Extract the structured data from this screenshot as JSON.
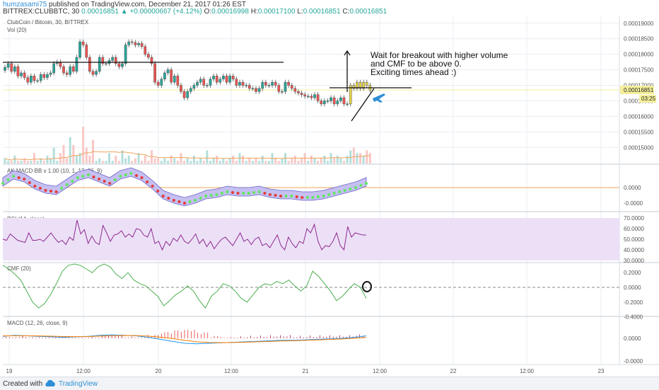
{
  "header": {
    "author": "humzasami75",
    "published": "published on TradingView.com, December 21, 2017 01:26 EST",
    "symbol_line": "BITTREX:CLUBBTC, 30",
    "last": "0.00016851",
    "change": "▲ +0.00000667 (+4.12%)",
    "o_label": "O:",
    "o_value": "0.00016998",
    "h_label": "H:",
    "h_value": "0.00017100",
    "l_label": "L:",
    "l_value": "0.00016851",
    "c_label": "C:",
    "c_value": "0.00016851"
  },
  "footer": {
    "created": "Created with",
    "brand": "TradingView"
  },
  "colors": {
    "up": "#26a69a",
    "down": "#ef5350",
    "yellow": "#e8d547",
    "grid": "#e9edf2",
    "axis": "#d6dce3"
  },
  "chart_data": [
    {
      "type": "candlestick",
      "title": "ClubCoin / Bitcoin, 30, BITTREX",
      "overlay_labels": [
        "Vol (20)"
      ],
      "y_ticks": [
        "0.00019000",
        "0.00018500",
        "0.00018000",
        "0.00017500",
        "0.00017000",
        "0.00016500",
        "0.00016000",
        "0.00015500",
        "0.00015000"
      ],
      "ylim": [
        0.0001487,
        0.0001904
      ],
      "price_tag": "0.00016851",
      "timer_tag": "03:25",
      "x_ticks": [
        "19",
        "12:00",
        "20",
        "12:00",
        "21",
        "12:00",
        "22",
        "12:00",
        "23"
      ],
      "series": [
        {
          "name": "close",
          "values": [
            0.0001758,
            0.000177,
            0.0001745,
            0.000176,
            0.000173,
            0.000174,
            0.0001725,
            0.000171,
            0.000173,
            0.0001715,
            0.0001715,
            0.0001735,
            0.0001725,
            0.0001735,
            0.000174,
            0.000177,
            0.0001775,
            0.000176,
            0.000174,
            0.0001735,
            0.000176,
            0.0001745,
            0.000179,
            0.000184,
            0.000183,
            0.000179,
            0.0001745,
            0.0001735,
            0.0001745,
            0.000179,
            0.000177,
            0.000177,
            0.000178,
            0.000179,
            0.000177,
            0.000176,
            0.000177,
            0.000183,
            0.000184,
            0.0001838,
            0.000183,
            0.0001835,
            0.0001825,
            0.00018,
            0.000179,
            0.000177,
            0.000171,
            0.00017,
            0.000172,
            0.000174,
            0.000175,
            0.000171,
            0.000173,
            0.00017,
            0.000168,
            0.000166,
            0.000168,
            0.000169,
            0.00017,
            0.000171,
            0.000172,
            0.00017,
            0.00017,
            0.000172,
            0.000173,
            0.000171,
            0.000172,
            0.000173,
            0.000171,
            0.000173,
            0.000172,
            0.00017,
            0.000171,
            0.00017,
            0.00017,
            0.000169,
            0.000169,
            0.000168,
            0.000169,
            0.000171,
            0.00017,
            0.00017,
            0.000171,
            0.00017,
            0.000168,
            0.000168,
            0.000171,
            0.00017,
            0.000169,
            0.000168,
            0.0001675,
            0.000167,
            0.0001665,
            0.0001665,
            0.000166,
            0.000167,
            0.000165,
            0.000164,
            0.000165,
            0.000165,
            0.000166,
            0.000164,
            0.000165,
            0.000166,
            0.000164,
            0.000164,
            0.00017,
            0.000169,
            0.000171,
            0.000169,
            0.000171,
            0.00017,
            0.0001685
          ]
        },
        {
          "name": "volume",
          "values": [
            2,
            1,
            1,
            3,
            1,
            1,
            2,
            1,
            1,
            4,
            1,
            2,
            1,
            3,
            2,
            6,
            1,
            4,
            7,
            2,
            10,
            7,
            3,
            4,
            14,
            6,
            3,
            9,
            1,
            2,
            1,
            1,
            4,
            1,
            3,
            1,
            5,
            2,
            3,
            1,
            2,
            4,
            1,
            3,
            1,
            5,
            2,
            2,
            1,
            2,
            1,
            3,
            2,
            1,
            4,
            1,
            2,
            1,
            3,
            1,
            2,
            1,
            5,
            1,
            2,
            3,
            1,
            2,
            1,
            2,
            3,
            1,
            4,
            3,
            1,
            2,
            1,
            2,
            1,
            3,
            1,
            1,
            4,
            2,
            1,
            2,
            4,
            1,
            2,
            3,
            1,
            2,
            4,
            1,
            3,
            2,
            1,
            2,
            3,
            1,
            4,
            2,
            3,
            2,
            1,
            3,
            5,
            6,
            4,
            4,
            3,
            5,
            4
          ]
        }
      ],
      "annotations": [
        "Wait for breakout with higher volume",
        "and CMF to be above 0.",
        "Exciting times ahead :)"
      ]
    },
    {
      "type": "line",
      "title": "AK MACD BB v 1.00 (10, 1, 12, 26, 9)",
      "y_ticks": [
        "0.0000",
        "-0.0000"
      ],
      "series": [
        {
          "name": "macd_bb",
          "values": [
            0.4,
            0.9,
            0.7,
            0.2,
            -0.1,
            -0.2,
            0.3,
            0.8,
            1.0,
            0.7,
            0.4,
            0.9,
            1.1,
            0.8,
            0.2,
            -0.5,
            -0.8,
            -1.0,
            -0.8,
            -0.5,
            -0.4,
            -0.2,
            -0.3,
            -0.3,
            -0.2,
            -0.4,
            -0.5,
            -0.5,
            -0.6,
            -0.6,
            -0.5,
            -0.3,
            -0.1,
            0.1,
            0.4
          ]
        }
      ]
    },
    {
      "type": "line",
      "title": "RSI (14, close)",
      "y_ticks": [
        "70.0000",
        "60.0000",
        "50.0000",
        "40.0000",
        "30.0000"
      ],
      "ylim": [
        30,
        70
      ],
      "series": [
        {
          "name": "rsi",
          "values": [
            50,
            49,
            55,
            52,
            49,
            48,
            47,
            56,
            49,
            49,
            50,
            48,
            52,
            56,
            51,
            47,
            49,
            45,
            52,
            49,
            68,
            55,
            59,
            46,
            53,
            47,
            45,
            63,
            56,
            48,
            54,
            55,
            58,
            52,
            55,
            52,
            60,
            59,
            54,
            52,
            60,
            46,
            48,
            40,
            48,
            44,
            51,
            48,
            54,
            48,
            46,
            50,
            55,
            46,
            50,
            43,
            48,
            41,
            46,
            50,
            52,
            48,
            44,
            50,
            56,
            48,
            50,
            45,
            50,
            52,
            44,
            46,
            42,
            48,
            54,
            44,
            40,
            52,
            46,
            42,
            48,
            46,
            60,
            56,
            64,
            48,
            40,
            44,
            43,
            48,
            56,
            44,
            40,
            62,
            52,
            56,
            55,
            54,
            54
          ]
        }
      ]
    },
    {
      "type": "line",
      "title": "CMF (20)",
      "y_ticks": [
        "0.2000",
        "0.0000",
        "-0.2000",
        "-0.4000"
      ],
      "ylim": [
        -0.45,
        0.35
      ],
      "series": [
        {
          "name": "cmf",
          "values": [
            0.3,
            0.25,
            0.18,
            0.1,
            -0.05,
            -0.2,
            -0.28,
            -0.22,
            -0.1,
            0.05,
            0.22,
            0.3,
            0.35,
            0.3,
            0.25,
            0.2,
            0.28,
            0.35,
            0.28,
            0.18,
            0.12,
            0.2,
            0.1,
            0.05,
            0.02,
            -0.05,
            -0.12,
            -0.25,
            -0.18,
            -0.1,
            -0.05,
            0.02,
            -0.05,
            -0.18,
            -0.28,
            -0.12,
            -0.05,
            0.05,
            0.02,
            -0.05,
            -0.15,
            -0.2,
            -0.1,
            0.0,
            0.05,
            0.03,
            0.08,
            0.05,
            0.1,
            0.02,
            -0.05,
            0.02,
            0.22,
            0.15,
            0.05,
            -0.05,
            -0.18,
            -0.12,
            -0.03,
            0.05,
            0.0,
            -0.15
          ]
        }
      ]
    },
    {
      "type": "line",
      "title": "MACD (12, 26, close, 9)",
      "y_ticks": [
        "0.0000",
        "-0.0000"
      ],
      "series": [
        {
          "name": "macd",
          "values": [
            0.2,
            0.3,
            0.25,
            0.2,
            0.15,
            0.1,
            0.15,
            0.2,
            0.3,
            0.35,
            0.3,
            0.25,
            0.1,
            -0.1,
            -0.3,
            -0.5,
            -0.55,
            -0.5,
            -0.45,
            -0.4,
            -0.35,
            -0.3,
            -0.25,
            -0.2,
            -0.2,
            -0.15,
            -0.1,
            -0.05,
            0.0,
            0.1,
            0.25
          ]
        },
        {
          "name": "signal",
          "values": [
            0.25,
            0.26,
            0.26,
            0.24,
            0.21,
            0.18,
            0.17,
            0.18,
            0.22,
            0.27,
            0.29,
            0.28,
            0.22,
            0.12,
            -0.02,
            -0.2,
            -0.35,
            -0.42,
            -0.44,
            -0.42,
            -0.39,
            -0.35,
            -0.31,
            -0.27,
            -0.24,
            -0.2,
            -0.16,
            -0.11,
            -0.06,
            0.01,
            0.1
          ]
        }
      ]
    }
  ]
}
